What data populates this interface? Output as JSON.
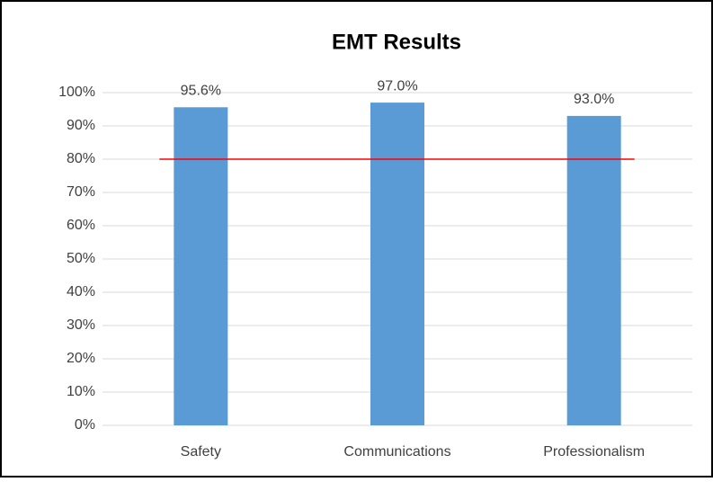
{
  "chart_data": {
    "type": "bar",
    "title": "EMT Results",
    "categories": [
      "Safety",
      "Communications",
      "Professionalism"
    ],
    "values": [
      95.6,
      97.0,
      93.0
    ],
    "value_labels": [
      "95.6%",
      "97.0%",
      "93.0%"
    ],
    "color": "#5b9bd5",
    "ylim": [
      0,
      100
    ],
    "yticks": [
      {
        "value": 0,
        "label": "0%"
      },
      {
        "value": 10,
        "label": "10%"
      },
      {
        "value": 20,
        "label": "20%"
      },
      {
        "value": 30,
        "label": "30%"
      },
      {
        "value": 40,
        "label": "40%"
      },
      {
        "value": 50,
        "label": "50%"
      },
      {
        "value": 60,
        "label": "60%"
      },
      {
        "value": 70,
        "label": "70%"
      },
      {
        "value": 80,
        "label": "80%"
      },
      {
        "value": 90,
        "label": "90%"
      },
      {
        "value": 100,
        "label": "100%"
      }
    ],
    "grid": true,
    "reference_line": {
      "value": 80,
      "color": "#ff0000"
    }
  }
}
